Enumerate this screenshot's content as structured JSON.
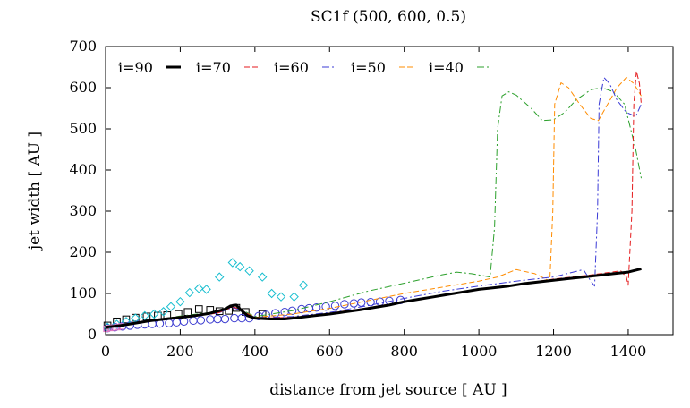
{
  "chart_data": {
    "type": "line",
    "title": "SC1f (500, 600, 0.5)",
    "xlabel": "distance from jet source [ AU ]",
    "ylabel": "jet width [ AU ]",
    "xlim": [
      0,
      1520
    ],
    "ylim": [
      0,
      700
    ],
    "xticks": [
      0,
      200,
      400,
      600,
      800,
      1000,
      1200,
      1400
    ],
    "yticks": [
      0,
      100,
      200,
      300,
      400,
      500,
      600,
      700
    ],
    "legend_position": "top-left",
    "series": [
      {
        "name": "i=90",
        "style": "solid",
        "color": "#000000",
        "points": [
          [
            0,
            18
          ],
          [
            40,
            22
          ],
          [
            80,
            28
          ],
          [
            120,
            34
          ],
          [
            160,
            38
          ],
          [
            200,
            42
          ],
          [
            240,
            46
          ],
          [
            280,
            52
          ],
          [
            320,
            62
          ],
          [
            335,
            70
          ],
          [
            350,
            72
          ],
          [
            365,
            58
          ],
          [
            380,
            46
          ],
          [
            400,
            40
          ],
          [
            440,
            38
          ],
          [
            480,
            38
          ],
          [
            520,
            42
          ],
          [
            560,
            46
          ],
          [
            600,
            50
          ],
          [
            640,
            55
          ],
          [
            680,
            60
          ],
          [
            720,
            66
          ],
          [
            760,
            72
          ],
          [
            800,
            80
          ],
          [
            840,
            86
          ],
          [
            880,
            92
          ],
          [
            920,
            98
          ],
          [
            960,
            104
          ],
          [
            1000,
            110
          ],
          [
            1040,
            114
          ],
          [
            1080,
            118
          ],
          [
            1120,
            124
          ],
          [
            1160,
            128
          ],
          [
            1200,
            132
          ],
          [
            1240,
            136
          ],
          [
            1280,
            140
          ],
          [
            1320,
            144
          ],
          [
            1360,
            148
          ],
          [
            1400,
            152
          ],
          [
            1435,
            160
          ]
        ]
      },
      {
        "name": "i=70",
        "style": "dashed",
        "color": "#e41a1c",
        "points": [
          [
            0,
            18
          ],
          [
            100,
            30
          ],
          [
            200,
            42
          ],
          [
            300,
            52
          ],
          [
            340,
            68
          ],
          [
            360,
            62
          ],
          [
            400,
            40
          ],
          [
            500,
            42
          ],
          [
            600,
            52
          ],
          [
            700,
            65
          ],
          [
            800,
            80
          ],
          [
            900,
            95
          ],
          [
            1000,
            110
          ],
          [
            1100,
            122
          ],
          [
            1200,
            135
          ],
          [
            1300,
            145
          ],
          [
            1380,
            155
          ],
          [
            1395,
            140
          ],
          [
            1400,
            120
          ],
          [
            1410,
            300
          ],
          [
            1415,
            560
          ],
          [
            1422,
            640
          ],
          [
            1430,
            610
          ],
          [
            1435,
            560
          ]
        ]
      },
      {
        "name": "i=60",
        "style": "dashdot",
        "color": "#3b3bd6",
        "points": [
          [
            0,
            18
          ],
          [
            100,
            30
          ],
          [
            200,
            42
          ],
          [
            300,
            52
          ],
          [
            340,
            66
          ],
          [
            360,
            60
          ],
          [
            400,
            40
          ],
          [
            500,
            44
          ],
          [
            600,
            54
          ],
          [
            700,
            70
          ],
          [
            800,
            88
          ],
          [
            900,
            105
          ],
          [
            1000,
            118
          ],
          [
            1100,
            130
          ],
          [
            1200,
            140
          ],
          [
            1280,
            158
          ],
          [
            1300,
            130
          ],
          [
            1310,
            118
          ],
          [
            1318,
            300
          ],
          [
            1322,
            560
          ],
          [
            1335,
            625
          ],
          [
            1350,
            610
          ],
          [
            1370,
            570
          ],
          [
            1395,
            540
          ],
          [
            1420,
            530
          ],
          [
            1435,
            560
          ]
        ]
      },
      {
        "name": "i=50",
        "style": "dashed",
        "color": "#ff8c00",
        "points": [
          [
            0,
            18
          ],
          [
            100,
            32
          ],
          [
            200,
            44
          ],
          [
            300,
            54
          ],
          [
            340,
            66
          ],
          [
            360,
            60
          ],
          [
            400,
            42
          ],
          [
            500,
            50
          ],
          [
            600,
            64
          ],
          [
            700,
            82
          ],
          [
            800,
            100
          ],
          [
            900,
            115
          ],
          [
            1000,
            130
          ],
          [
            1050,
            140
          ],
          [
            1100,
            158
          ],
          [
            1150,
            148
          ],
          [
            1190,
            130
          ],
          [
            1198,
            300
          ],
          [
            1203,
            560
          ],
          [
            1220,
            612
          ],
          [
            1240,
            600
          ],
          [
            1270,
            560
          ],
          [
            1300,
            525
          ],
          [
            1320,
            520
          ],
          [
            1345,
            560
          ],
          [
            1370,
            600
          ],
          [
            1395,
            625
          ],
          [
            1415,
            610
          ],
          [
            1435,
            580
          ]
        ]
      },
      {
        "name": "i=40",
        "style": "dashdot",
        "color": "#2ca02c",
        "points": [
          [
            0,
            18
          ],
          [
            100,
            32
          ],
          [
            200,
            45
          ],
          [
            300,
            56
          ],
          [
            340,
            68
          ],
          [
            360,
            62
          ],
          [
            400,
            44
          ],
          [
            500,
            58
          ],
          [
            600,
            80
          ],
          [
            700,
            105
          ],
          [
            800,
            125
          ],
          [
            900,
            145
          ],
          [
            940,
            152
          ],
          [
            980,
            148
          ],
          [
            1030,
            140
          ],
          [
            1042,
            260
          ],
          [
            1050,
            500
          ],
          [
            1062,
            580
          ],
          [
            1080,
            590
          ],
          [
            1100,
            582
          ],
          [
            1140,
            550
          ],
          [
            1170,
            520
          ],
          [
            1200,
            522
          ],
          [
            1230,
            540
          ],
          [
            1260,
            570
          ],
          [
            1300,
            595
          ],
          [
            1330,
            600
          ],
          [
            1360,
            590
          ],
          [
            1390,
            560
          ],
          [
            1420,
            450
          ],
          [
            1435,
            380
          ]
        ]
      }
    ],
    "scatter": [
      {
        "name": "squares",
        "marker": "square",
        "color": "#000000",
        "points": [
          [
            5,
            22
          ],
          [
            30,
            32
          ],
          [
            55,
            37
          ],
          [
            80,
            41
          ],
          [
            110,
            44
          ],
          [
            140,
            46
          ],
          [
            165,
            47
          ],
          [
            195,
            50
          ],
          [
            220,
            55
          ],
          [
            250,
            62
          ],
          [
            280,
            60
          ],
          [
            305,
            57
          ],
          [
            330,
            58
          ],
          [
            350,
            65
          ],
          [
            375,
            55
          ],
          [
            420,
            50
          ]
        ]
      },
      {
        "name": "circles",
        "marker": "circle",
        "color": "#3a3ad0",
        "points": [
          [
            5,
            16
          ],
          [
            25,
            18
          ],
          [
            45,
            20
          ],
          [
            65,
            22
          ],
          [
            85,
            24
          ],
          [
            105,
            25
          ],
          [
            125,
            26
          ],
          [
            145,
            27
          ],
          [
            170,
            28
          ],
          [
            190,
            30
          ],
          [
            210,
            32
          ],
          [
            235,
            34
          ],
          [
            255,
            35
          ],
          [
            280,
            37
          ],
          [
            300,
            38
          ],
          [
            320,
            38
          ],
          [
            345,
            40
          ],
          [
            365,
            40
          ],
          [
            385,
            40
          ],
          [
            410,
            45
          ],
          [
            430,
            48
          ],
          [
            455,
            52
          ],
          [
            480,
            55
          ],
          [
            500,
            58
          ],
          [
            525,
            62
          ],
          [
            545,
            64
          ],
          [
            565,
            66
          ],
          [
            590,
            68
          ],
          [
            615,
            70
          ],
          [
            640,
            74
          ],
          [
            665,
            76
          ],
          [
            685,
            78
          ],
          [
            710,
            79
          ],
          [
            735,
            80
          ],
          [
            760,
            82
          ],
          [
            790,
            84
          ]
        ]
      },
      {
        "name": "diamonds",
        "marker": "diamond",
        "color": "#17becf",
        "points": [
          [
            5,
            18
          ],
          [
            30,
            25
          ],
          [
            55,
            32
          ],
          [
            80,
            40
          ],
          [
            105,
            46
          ],
          [
            130,
            50
          ],
          [
            155,
            56
          ],
          [
            175,
            68
          ],
          [
            200,
            80
          ],
          [
            225,
            102
          ],
          [
            250,
            112
          ],
          [
            270,
            110
          ],
          [
            305,
            140
          ],
          [
            340,
            175
          ],
          [
            360,
            165
          ],
          [
            385,
            155
          ],
          [
            420,
            140
          ],
          [
            445,
            100
          ],
          [
            470,
            92
          ],
          [
            505,
            92
          ],
          [
            530,
            120
          ]
        ]
      },
      {
        "name": "pink",
        "marker": "square-small",
        "color": "#e377c2",
        "points": [
          [
            2,
            14
          ],
          [
            12,
            16
          ],
          [
            22,
            17
          ],
          [
            32,
            18
          ],
          [
            42,
            20
          ]
        ]
      }
    ]
  }
}
